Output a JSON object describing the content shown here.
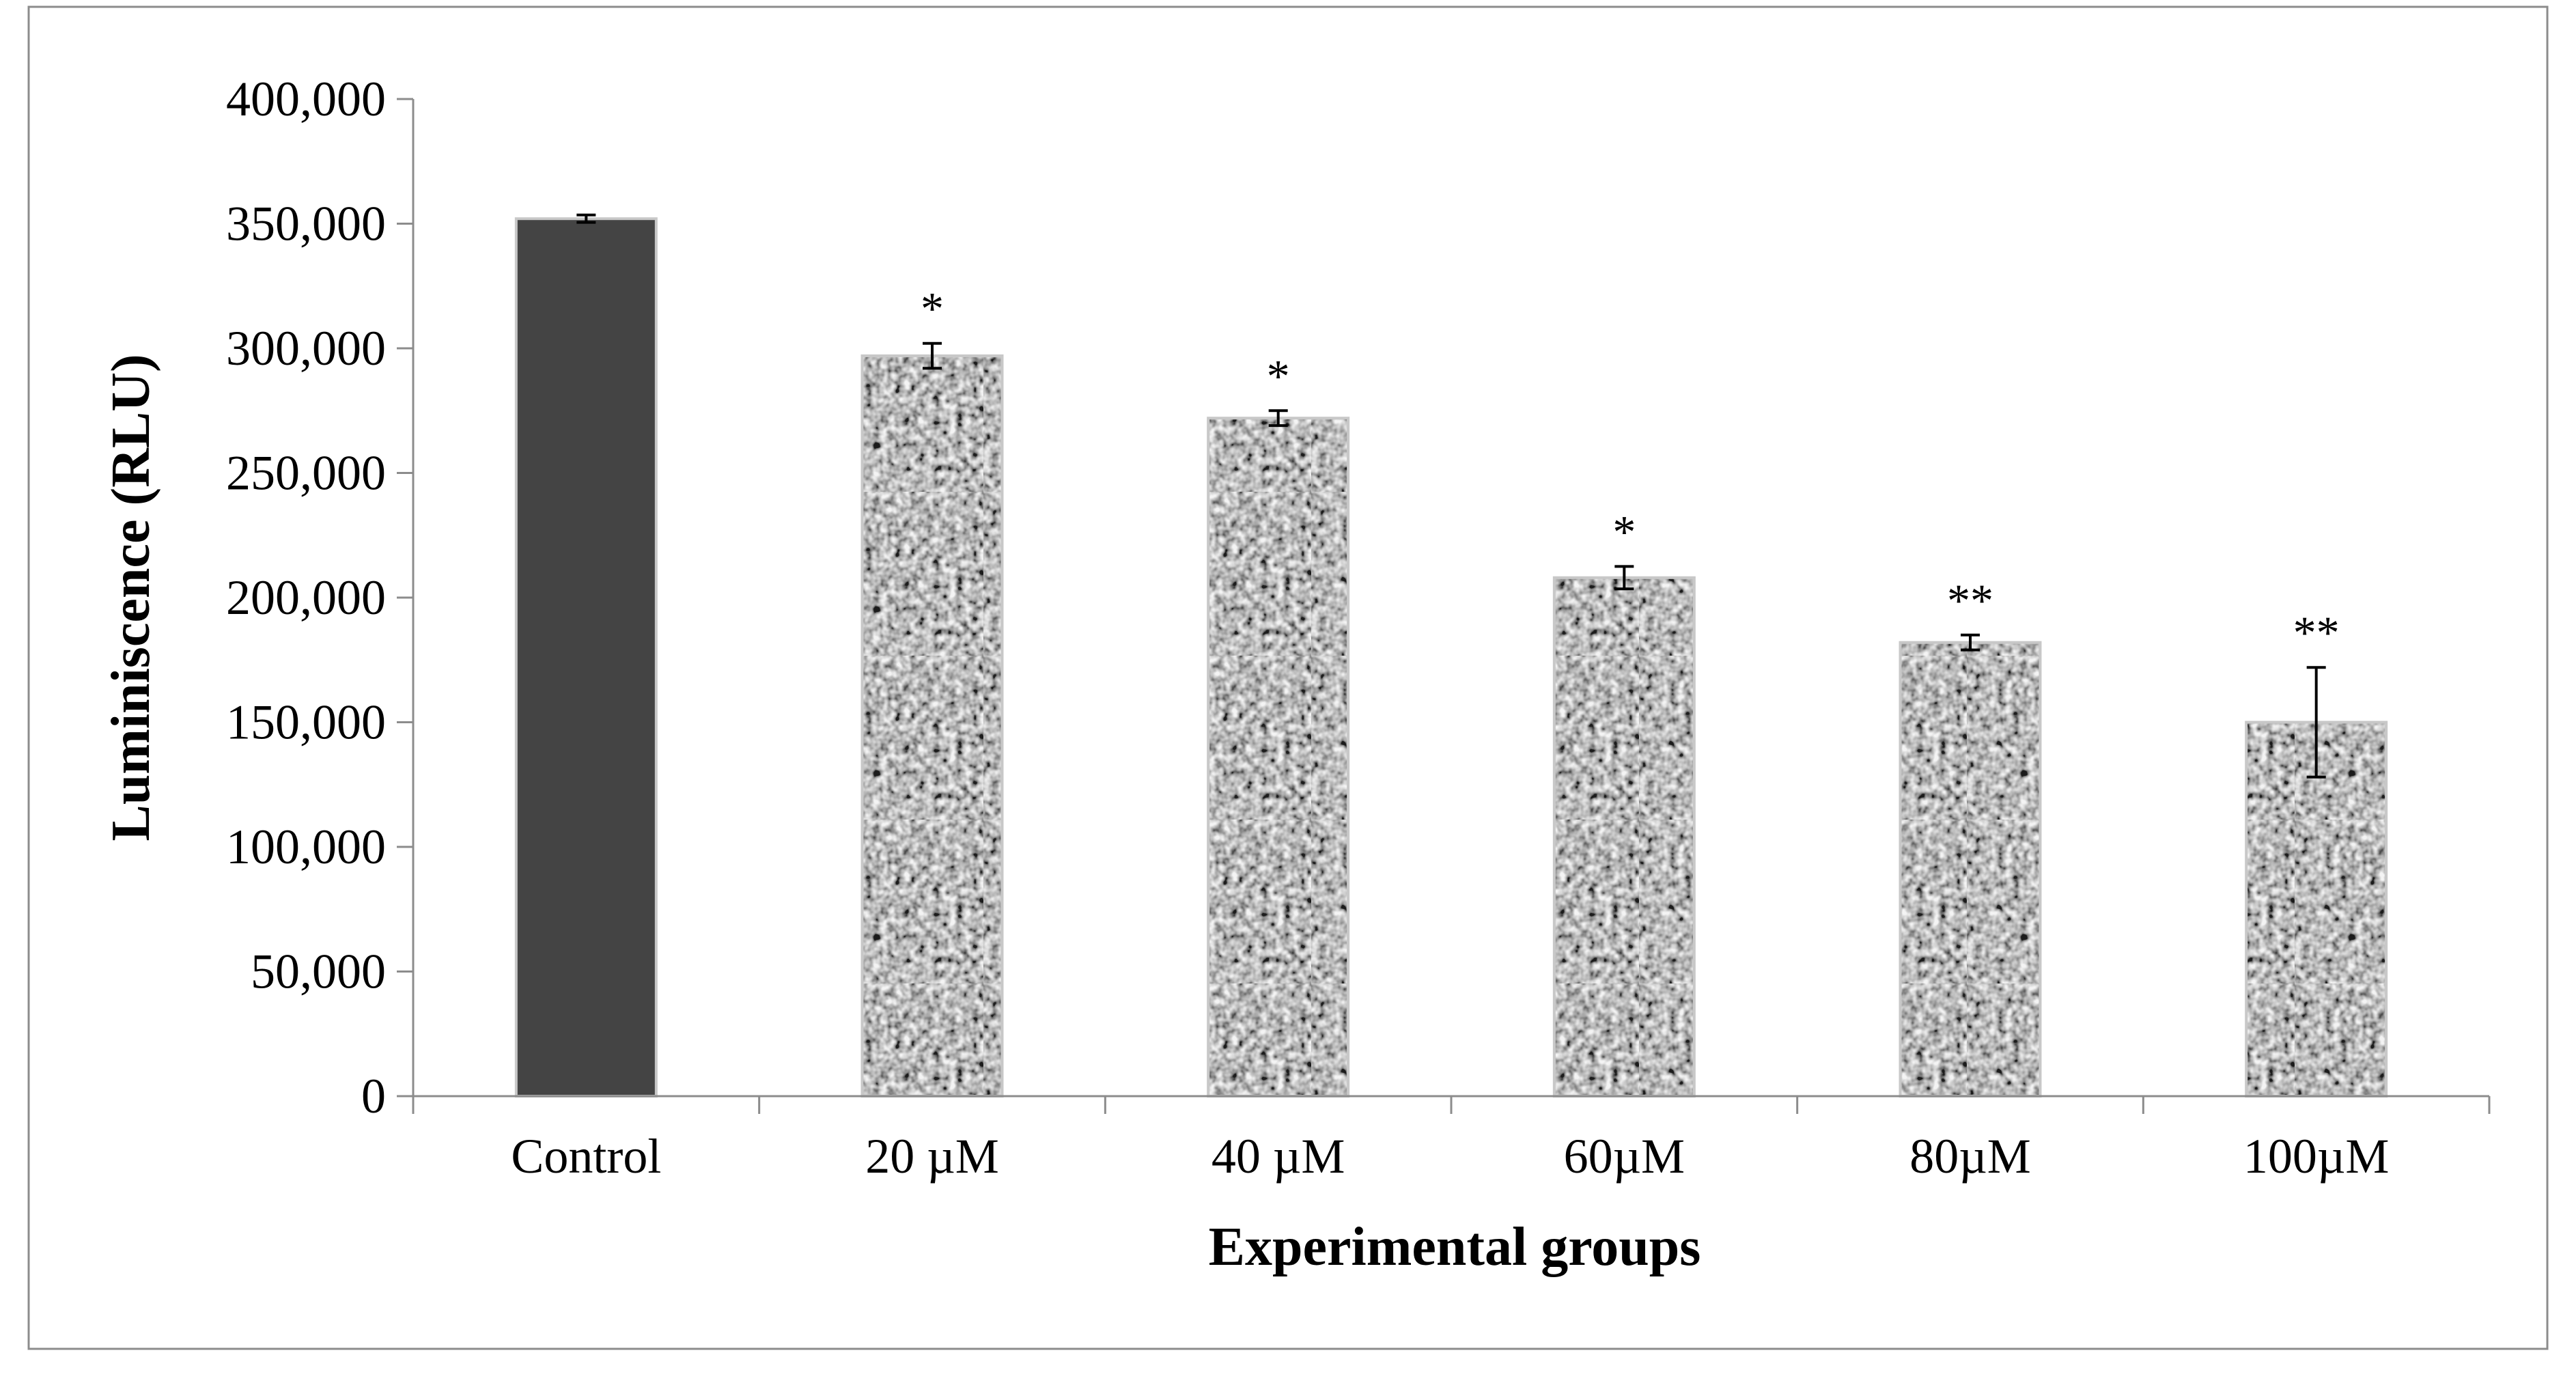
{
  "chart_data": {
    "type": "bar",
    "title": "",
    "xlabel": "Experimental groups",
    "ylabel": "Luminiscence (RLU)",
    "categories": [
      "Control",
      "20 µM",
      "40 µM",
      "60µM",
      "80µM",
      "100µM"
    ],
    "values": [
      352000,
      297000,
      272000,
      208000,
      182000,
      150000
    ],
    "errors": [
      1500,
      5000,
      3000,
      4500,
      3000,
      22000
    ],
    "annotations": [
      "",
      "*",
      "*",
      "*",
      "**",
      "**"
    ],
    "ylim": [
      0,
      400000
    ],
    "yticks": [
      0,
      50000,
      100000,
      150000,
      200000,
      250000,
      300000,
      350000,
      400000
    ],
    "ytick_labels": [
      "0",
      "50,000",
      "100,000",
      "150,000",
      "200,000",
      "250,000",
      "300,000",
      "350,000",
      "400,000"
    ],
    "grid": false,
    "legend": "none",
    "colors": {
      "control_fill": "#444444",
      "treated_base": "#b8b8b8",
      "treated_speckle_dark": "#4a4a4a",
      "treated_speckle_light": "#ececec",
      "bar_edge": "#c8c8c8",
      "axis": "#8c8c8c",
      "frame": "#8c8c8c",
      "text": "#000000"
    }
  }
}
